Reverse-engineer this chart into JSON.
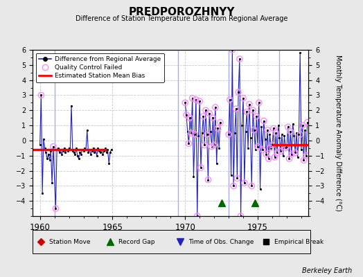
{
  "title": "PREDPOROZHNYY",
  "subtitle": "Difference of Station Temperature Data from Regional Average",
  "ylabel": "Monthly Temperature Anomaly Difference (°C)",
  "ylim": [
    -5,
    6
  ],
  "xlim": [
    1959.5,
    1978.5
  ],
  "bg_color": "#e8e8e8",
  "plot_bg_color": "#ffffff",
  "grid_color": "#c8c8c8",
  "line_color": "#2222bb",
  "marker_color": "#000000",
  "qc_color": "#ff88ff",
  "bias_color": "#ff0000",
  "station_move_color": "#cc0000",
  "record_gap_color": "#006600",
  "obs_change_color": "#2222bb",
  "empirical_break_color": "#000000",
  "vertical_lines": [
    1961.0,
    1969.5,
    1973.0,
    1976.5
  ],
  "vertical_line_color": "#aaaaee",
  "bias_segments": [
    {
      "x_start": 1959.5,
      "x_end": 1964.6,
      "y": -0.6
    },
    {
      "x_start": 1976.0,
      "x_end": 1978.5,
      "y": -0.3
    }
  ],
  "record_gaps": [
    1972.5,
    1974.83
  ],
  "data_x": [
    1960.0,
    1960.083,
    1960.167,
    1960.25,
    1960.333,
    1960.417,
    1960.5,
    1960.583,
    1960.667,
    1960.75,
    1960.833,
    1960.917,
    1961.083,
    1961.167,
    1961.25,
    1961.333,
    1961.417,
    1961.5,
    1961.583,
    1961.667,
    1961.75,
    1961.833,
    1961.917,
    1962.0,
    1962.083,
    1962.167,
    1962.25,
    1962.333,
    1962.417,
    1962.5,
    1962.583,
    1962.667,
    1962.75,
    1962.833,
    1962.917,
    1963.0,
    1963.083,
    1963.167,
    1963.25,
    1963.333,
    1963.417,
    1963.5,
    1963.583,
    1963.667,
    1963.75,
    1963.833,
    1963.917,
    1964.0,
    1964.083,
    1964.167,
    1964.25,
    1964.333,
    1964.417,
    1964.5,
    1964.583,
    1964.667,
    1964.75,
    1964.833,
    1964.917,
    1970.0,
    1970.083,
    1970.167,
    1970.25,
    1970.333,
    1970.417,
    1970.5,
    1970.583,
    1970.667,
    1970.75,
    1970.833,
    1970.917,
    1971.0,
    1971.083,
    1971.167,
    1971.25,
    1971.333,
    1971.417,
    1971.5,
    1971.583,
    1971.667,
    1971.75,
    1971.833,
    1971.917,
    1972.0,
    1972.083,
    1972.167,
    1972.25,
    1972.333,
    1972.417,
    1973.0,
    1973.083,
    1973.167,
    1973.25,
    1973.333,
    1973.417,
    1973.5,
    1973.583,
    1973.667,
    1973.75,
    1973.833,
    1973.917,
    1974.0,
    1974.083,
    1974.167,
    1974.25,
    1974.333,
    1974.417,
    1974.5,
    1974.583,
    1974.667,
    1974.75,
    1974.833,
    1974.917,
    1975.0,
    1975.083,
    1975.167,
    1975.25,
    1975.333,
    1975.417,
    1975.5,
    1975.583,
    1975.667,
    1975.75,
    1975.833,
    1975.917,
    1976.0,
    1976.083,
    1976.167,
    1976.25,
    1976.333,
    1976.417,
    1976.5,
    1976.583,
    1976.667,
    1976.75,
    1976.833,
    1976.917,
    1977.0,
    1977.083,
    1977.167,
    1977.25,
    1977.333,
    1977.417,
    1977.5,
    1977.583,
    1977.667,
    1977.75,
    1977.833,
    1977.917,
    1978.0,
    1978.083,
    1978.167,
    1978.25,
    1978.333,
    1978.417
  ],
  "data_y": [
    -0.3,
    3.0,
    -3.5,
    0.1,
    -0.5,
    -0.8,
    -1.2,
    -0.9,
    -1.3,
    -0.7,
    -2.8,
    -0.4,
    -4.5,
    -0.6,
    -0.5,
    -0.8,
    -0.6,
    -0.9,
    -0.7,
    -0.5,
    -0.8,
    -0.6,
    -0.7,
    -0.5,
    -0.6,
    2.3,
    -0.7,
    -0.8,
    -0.9,
    -0.5,
    -1.0,
    -1.2,
    -0.8,
    -0.9,
    -0.6,
    -0.7,
    -0.5,
    -0.6,
    0.7,
    -0.8,
    -0.6,
    -0.9,
    -0.7,
    -0.5,
    -0.8,
    -0.6,
    -1.0,
    -0.5,
    -0.7,
    -0.8,
    -0.6,
    -0.9,
    -0.7,
    -0.5,
    -0.8,
    -0.6,
    -1.5,
    -0.8,
    -0.6,
    2.5,
    1.7,
    0.6,
    -0.2,
    1.5,
    0.5,
    2.8,
    -2.4,
    0.4,
    2.7,
    -5.0,
    0.3,
    2.6,
    -1.8,
    0.5,
    1.6,
    -0.3,
    2.0,
    0.4,
    -2.6,
    1.8,
    0.6,
    -0.4,
    1.5,
    -0.3,
    2.2,
    -1.5,
    0.8,
    -0.5,
    1.2,
    0.4,
    2.7,
    -2.3,
    6.0,
    -3.0,
    0.5,
    2.1,
    -2.5,
    3.2,
    5.4,
    -5.0,
    1.0,
    2.8,
    -2.8,
    0.6,
    1.9,
    -0.5,
    2.4,
    0.2,
    -3.0,
    2.0,
    0.7,
    -0.6,
    1.6,
    -0.4,
    2.5,
    -3.2,
    0.9,
    -0.6,
    1.3,
    0.1,
    -0.9,
    0.7,
    -1.2,
    0.4,
    -0.5,
    -0.3,
    0.8,
    -1.1,
    0.5,
    -0.8,
    1.0,
    0.2,
    -0.7,
    0.4,
    -1.0,
    0.3,
    -0.5,
    -0.4,
    0.9,
    -1.2,
    0.6,
    -0.9,
    1.1,
    0.3,
    -0.8,
    0.5,
    -1.1,
    0.4,
    5.8,
    -0.6,
    1.0,
    -1.3,
    0.7,
    -1.0,
    1.2
  ],
  "qc_failed_x": [
    1960.083,
    1960.917,
    1961.083,
    1970.0,
    1970.083,
    1970.25,
    1970.333,
    1970.417,
    1970.5,
    1970.667,
    1970.75,
    1970.833,
    1971.0,
    1971.083,
    1971.25,
    1971.333,
    1971.417,
    1971.5,
    1971.583,
    1971.667,
    1971.833,
    1971.917,
    1972.0,
    1972.083,
    1972.25,
    1972.417,
    1973.0,
    1973.083,
    1973.25,
    1973.333,
    1973.5,
    1973.583,
    1973.667,
    1973.75,
    1973.833,
    1974.0,
    1974.083,
    1974.25,
    1974.417,
    1974.583,
    1974.667,
    1974.75,
    1974.917,
    1975.0,
    1975.083,
    1975.333,
    1975.417,
    1975.583,
    1975.667,
    1975.75,
    1975.833,
    1976.0,
    1976.083,
    1976.167,
    1976.25,
    1976.333,
    1976.583,
    1976.917,
    1977.0,
    1977.083,
    1977.167,
    1977.25,
    1977.333,
    1977.583,
    1977.917,
    1978.083,
    1978.167,
    1978.333,
    1978.417
  ],
  "qc_failed_y": [
    3.0,
    -0.4,
    -4.5,
    2.5,
    1.7,
    -0.2,
    1.5,
    0.5,
    2.8,
    0.4,
    2.7,
    -5.0,
    2.6,
    -1.8,
    1.6,
    -0.3,
    2.0,
    0.4,
    -2.6,
    1.8,
    -0.4,
    1.5,
    -0.3,
    2.2,
    0.8,
    1.2,
    0.4,
    2.7,
    6.0,
    -3.0,
    2.1,
    -2.5,
    3.2,
    5.4,
    -5.0,
    2.8,
    -2.8,
    1.9,
    2.4,
    -3.0,
    2.0,
    0.7,
    1.6,
    -0.4,
    2.5,
    -0.6,
    1.3,
    -0.9,
    0.7,
    -1.2,
    -0.5,
    -0.3,
    0.8,
    -1.1,
    0.5,
    -0.8,
    -0.7,
    -0.5,
    -0.4,
    0.9,
    -1.2,
    0.6,
    -0.9,
    -0.8,
    0.4,
    1.0,
    -1.3,
    -1.0,
    1.2
  ]
}
